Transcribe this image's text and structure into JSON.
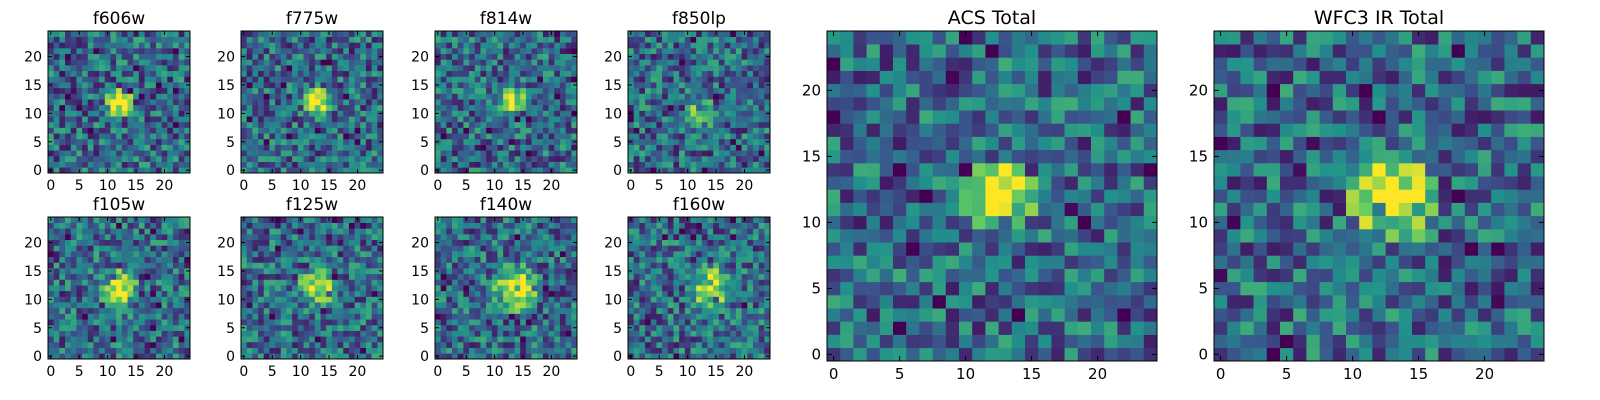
{
  "figure": {
    "title": "",
    "colormap": [
      "#440154",
      "#3b528b",
      "#21918c",
      "#5ec962",
      "#fde725"
    ]
  },
  "chart_data": [
    {
      "type": "heatmap",
      "title": "f606w",
      "grid_size": 25,
      "xlim": [
        0,
        24
      ],
      "ylim": [
        0,
        24
      ],
      "xticks": [
        "0",
        "5",
        "10",
        "15",
        "20"
      ],
      "yticks": [
        "0",
        "5",
        "10",
        "15",
        "20"
      ],
      "hotspot": {
        "x": 12,
        "y": 12,
        "radius": 2,
        "intensity": 0.9
      }
    },
    {
      "type": "heatmap",
      "title": "f775w",
      "grid_size": 25,
      "xlim": [
        0,
        24
      ],
      "ylim": [
        0,
        24
      ],
      "xticks": [
        "0",
        "5",
        "10",
        "15",
        "20"
      ],
      "yticks": [
        "0",
        "5",
        "10",
        "15",
        "20"
      ],
      "hotspot": {
        "x": 13,
        "y": 12,
        "radius": 2,
        "intensity": 0.8
      }
    },
    {
      "type": "heatmap",
      "title": "f814w",
      "grid_size": 25,
      "xlim": [
        0,
        24
      ],
      "ylim": [
        0,
        24
      ],
      "xticks": [
        "0",
        "5",
        "10",
        "15",
        "20"
      ],
      "yticks": [
        "0",
        "5",
        "10",
        "15",
        "20"
      ],
      "hotspot": {
        "x": 13,
        "y": 12,
        "radius": 2,
        "intensity": 0.7
      }
    },
    {
      "type": "heatmap",
      "title": "f850lp",
      "grid_size": 25,
      "xlim": [
        0,
        24
      ],
      "ylim": [
        0,
        24
      ],
      "xticks": [
        "0",
        "5",
        "10",
        "15",
        "20"
      ],
      "yticks": [
        "0",
        "5",
        "10",
        "15",
        "20"
      ],
      "hotspot": {
        "x": 12,
        "y": 10,
        "radius": 2,
        "intensity": 0.5
      }
    },
    {
      "type": "heatmap",
      "title": "f105w",
      "grid_size": 25,
      "xlim": [
        0,
        24
      ],
      "ylim": [
        0,
        24
      ],
      "xticks": [
        "0",
        "5",
        "10",
        "15",
        "20"
      ],
      "yticks": [
        "0",
        "5",
        "10",
        "15",
        "20"
      ],
      "hotspot": {
        "x": 12,
        "y": 12,
        "radius": 3,
        "intensity": 0.8
      }
    },
    {
      "type": "heatmap",
      "title": "f125w",
      "grid_size": 25,
      "xlim": [
        0,
        24
      ],
      "ylim": [
        0,
        24
      ],
      "xticks": [
        "0",
        "5",
        "10",
        "15",
        "20"
      ],
      "yticks": [
        "0",
        "5",
        "10",
        "15",
        "20"
      ],
      "hotspot": {
        "x": 13,
        "y": 12,
        "radius": 3,
        "intensity": 0.7
      }
    },
    {
      "type": "heatmap",
      "title": "f140w",
      "grid_size": 25,
      "xlim": [
        0,
        24
      ],
      "ylim": [
        0,
        24
      ],
      "xticks": [
        "0",
        "5",
        "10",
        "15",
        "20"
      ],
      "yticks": [
        "0",
        "5",
        "10",
        "15",
        "20"
      ],
      "hotspot": {
        "x": 14,
        "y": 12,
        "radius": 4,
        "intensity": 0.8
      }
    },
    {
      "type": "heatmap",
      "title": "f160w",
      "grid_size": 25,
      "xlim": [
        0,
        24
      ],
      "ylim": [
        0,
        24
      ],
      "xticks": [
        "0",
        "5",
        "10",
        "15",
        "20"
      ],
      "yticks": [
        "0",
        "5",
        "10",
        "15",
        "20"
      ],
      "hotspot": {
        "x": 14,
        "y": 12,
        "radius": 4,
        "intensity": 0.7
      }
    },
    {
      "type": "heatmap",
      "title": "ACS Total",
      "grid_size": 25,
      "xlim": [
        0,
        24
      ],
      "ylim": [
        0,
        24
      ],
      "xticks": [
        "0",
        "5",
        "10",
        "15",
        "20"
      ],
      "yticks": [
        "0",
        "5",
        "10",
        "15",
        "20"
      ],
      "hotspot": {
        "x": 12.5,
        "y": 12,
        "radius": 2,
        "intensity": 1.0
      }
    },
    {
      "type": "heatmap",
      "title": "WFC3 IR Total",
      "grid_size": 25,
      "xlim": [
        0,
        24
      ],
      "ylim": [
        0,
        24
      ],
      "xticks": [
        "0",
        "5",
        "10",
        "15",
        "20"
      ],
      "yticks": [
        "0",
        "5",
        "10",
        "15",
        "20"
      ],
      "hotspot": {
        "x": 13,
        "y": 12,
        "radius": 3,
        "intensity": 0.9
      }
    }
  ]
}
